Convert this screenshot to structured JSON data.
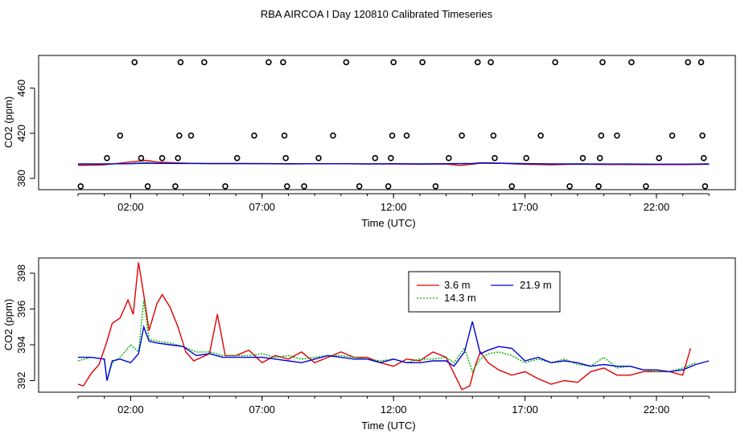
{
  "title": "RBA AIRCOA I  Day 120810  Calibrated Timeseries",
  "colors": {
    "red": "#e00000",
    "green": "#00b000",
    "blue": "#0000dd",
    "axis": "#000000"
  },
  "chart_data": [
    {
      "type": "scatter+line",
      "xlabel": "Time (UTC)",
      "ylabel": "CO2 (ppm)",
      "xlim": [
        -1.5,
        25
      ],
      "ylim": [
        370,
        489
      ],
      "xticks": [
        2,
        7,
        12,
        17,
        22
      ],
      "xtick_labels": [
        "02:00",
        "07:00",
        "12:00",
        "17:00",
        "22:00"
      ],
      "yticks": [
        380,
        420,
        460
      ],
      "ytick_labels": [
        "380",
        "420",
        "460"
      ],
      "calibration_points": {
        "name": "calibration",
        "x": [
          0.1,
          1.1,
          1.6,
          2.15,
          2.4,
          2.65,
          3.2,
          3.7,
          3.8,
          3.85,
          3.9,
          4.3,
          4.8,
          5.6,
          6.05,
          6.7,
          7.25,
          7.8,
          7.85,
          7.9,
          7.95,
          8.6,
          9.15,
          9.7,
          10.2,
          10.7,
          11.3,
          11.8,
          11.9,
          11.95,
          12.0,
          12.5,
          13.1,
          13.6,
          14.1,
          14.6,
          15.2,
          15.7,
          15.8,
          15.85,
          16.5,
          17.05,
          17.6,
          18.15,
          18.7,
          19.2,
          19.8,
          19.85,
          19.9,
          19.95,
          20.5,
          21.05,
          21.6,
          22.1,
          22.6,
          23.2,
          23.7,
          23.75,
          23.8,
          23.85
        ],
        "y": [
          373,
          398,
          418,
          483,
          398,
          373,
          398,
          373,
          398,
          418,
          483,
          418,
          483,
          373,
          398,
          418,
          483,
          483,
          418,
          398,
          373,
          373,
          398,
          418,
          483,
          373,
          398,
          373,
          398,
          418,
          483,
          418,
          483,
          373,
          398,
          418,
          483,
          483,
          418,
          398,
          373,
          398,
          418,
          483,
          373,
          398,
          373,
          398,
          418,
          483,
          418,
          483,
          373,
          398,
          418,
          483,
          483,
          418,
          398,
          373
        ]
      },
      "series": [
        {
          "name": "3.6 m",
          "color": "#e00000",
          "x": [
            0,
            1,
            2,
            2.6,
            3,
            4,
            5,
            6,
            7,
            8,
            9,
            10,
            11,
            12,
            13,
            14,
            14.5,
            15,
            15.3,
            16,
            17,
            18,
            19,
            20,
            21,
            22,
            23,
            24
          ],
          "y": [
            391.5,
            392,
            394.5,
            396,
            394.5,
            393.5,
            393,
            393,
            393,
            392.8,
            393,
            393,
            392.7,
            392.8,
            392.6,
            392.8,
            391.5,
            392.6,
            393.5,
            393.4,
            392.5,
            392,
            392.6,
            392.3,
            392.2,
            392.2,
            392.2,
            392.5
          ]
        },
        {
          "name": "14.3 m",
          "color": "#00b000",
          "x": [
            0,
            1,
            2,
            2.6,
            3,
            4,
            5,
            6,
            7,
            8,
            9,
            10,
            11,
            12,
            13,
            14,
            15,
            15.3,
            16,
            17,
            18,
            19,
            20,
            21,
            22,
            23,
            24
          ],
          "y": [
            392.5,
            392.8,
            393.2,
            394.2,
            393.5,
            393.3,
            393.2,
            393.2,
            393.1,
            393,
            393,
            393,
            392.9,
            393,
            392.9,
            393,
            393.2,
            393.6,
            393.4,
            393,
            392.7,
            392.8,
            392.6,
            392.6,
            392.6,
            392.6,
            392.7
          ]
        },
        {
          "name": "21.9 m",
          "color": "#0000dd",
          "x": [
            0,
            1,
            2,
            2.6,
            3,
            4,
            5,
            6,
            7,
            8,
            9,
            10,
            11,
            12,
            13,
            14,
            15,
            15.3,
            16,
            17,
            18,
            19,
            20,
            21,
            22,
            23,
            24
          ],
          "y": [
            392.8,
            392.9,
            393,
            393.5,
            393.3,
            393.2,
            393.2,
            393.2,
            393.1,
            393,
            393,
            393,
            392.9,
            393,
            392.9,
            393,
            393.2,
            393.8,
            393.5,
            393.1,
            392.9,
            392.8,
            392.7,
            392.7,
            392.6,
            392.6,
            392.8
          ]
        }
      ]
    },
    {
      "type": "line",
      "xlabel": "Time (UTC)",
      "ylabel": "CO2 (ppm)",
      "xlim": [
        -1.5,
        25
      ],
      "ylim": [
        391.35,
        398.85
      ],
      "xticks": [
        2,
        7,
        12,
        17,
        22
      ],
      "xtick_labels": [
        "02:00",
        "07:00",
        "12:00",
        "17:00",
        "22:00"
      ],
      "yticks": [
        392,
        394,
        396,
        398
      ],
      "ytick_labels": [
        "392",
        "394",
        "396",
        "398"
      ],
      "legend": {
        "position": "top-center",
        "entries": [
          "3.6 m",
          "21.9 m",
          "14.3 m"
        ]
      },
      "series": [
        {
          "name": "3.6 m",
          "color": "#e00000",
          "x": [
            0,
            0.2,
            0.5,
            0.8,
            1.1,
            1.3,
            1.6,
            1.9,
            2.1,
            2.3,
            2.5,
            2.7,
            3.0,
            3.2,
            3.5,
            3.8,
            4.1,
            4.4,
            4.7,
            5.0,
            5.3,
            5.6,
            6.0,
            6.5,
            7.0,
            7.5,
            8.0,
            8.5,
            9.0,
            9.5,
            10.0,
            10.5,
            11.0,
            11.5,
            12.0,
            12.5,
            13.0,
            13.5,
            14.0,
            14.3,
            14.6,
            14.9,
            15.1,
            15.3,
            15.6,
            16.0,
            16.5,
            17.0,
            17.5,
            18.0,
            18.5,
            19.0,
            19.5,
            20.0,
            20.5,
            21.0,
            21.5,
            22.0,
            22.5,
            23.0,
            23.3
          ],
          "y": [
            391.8,
            391.7,
            392.4,
            392.9,
            394.2,
            395.2,
            395.5,
            396.5,
            395.7,
            398.6,
            396.8,
            394.8,
            396.3,
            396.8,
            396.1,
            395.0,
            393.6,
            393.1,
            393.3,
            393.5,
            395.7,
            393.4,
            393.4,
            393.7,
            393.0,
            393.4,
            393.2,
            393.6,
            393.0,
            393.3,
            393.6,
            393.3,
            393.3,
            393.0,
            392.8,
            393.2,
            393.1,
            393.6,
            393.3,
            392.4,
            391.5,
            391.7,
            392.8,
            393.6,
            393.0,
            392.6,
            392.3,
            392.5,
            392.1,
            391.8,
            392.0,
            391.9,
            392.5,
            392.7,
            392.3,
            392.3,
            392.5,
            392.5,
            392.5,
            392.3,
            393.8
          ]
        },
        {
          "name": "14.3 m",
          "color": "#00b000",
          "x": [
            0,
            0.5,
            1.0,
            1.1,
            1.3,
            1.6,
            2.0,
            2.3,
            2.5,
            2.7,
            3.0,
            3.5,
            4.0,
            4.5,
            5.0,
            5.5,
            6.0,
            6.5,
            7.0,
            7.5,
            8.0,
            8.5,
            9.0,
            9.5,
            10.0,
            10.5,
            11.0,
            11.5,
            12.0,
            12.5,
            13.0,
            13.5,
            14.0,
            14.3,
            14.7,
            15.0,
            15.3,
            15.6,
            16.0,
            16.5,
            17.0,
            17.5,
            18.0,
            18.5,
            19.0,
            19.5,
            20.0,
            20.5,
            21.0,
            21.5,
            22.0,
            22.5,
            23.0,
            23.5
          ],
          "y": [
            393.1,
            393.3,
            393.2,
            392.0,
            393.0,
            393.3,
            394.0,
            393.6,
            396.5,
            394.3,
            394.2,
            394.1,
            393.9,
            393.6,
            393.6,
            393.4,
            393.4,
            393.4,
            393.5,
            393.3,
            393.4,
            393.2,
            393.3,
            393.4,
            393.4,
            393.3,
            393.2,
            393.1,
            393.2,
            393.0,
            393.2,
            393.2,
            393.3,
            393.0,
            393.8,
            392.5,
            393.2,
            393.5,
            393.6,
            393.4,
            393.0,
            393.2,
            393.0,
            393.2,
            392.9,
            392.8,
            393.3,
            392.7,
            392.8,
            392.6,
            392.5,
            392.5,
            392.7,
            393.0
          ]
        },
        {
          "name": "21.9 m",
          "color": "#0000dd",
          "x": [
            0,
            0.5,
            1.0,
            1.1,
            1.3,
            1.6,
            2.0,
            2.3,
            2.5,
            2.7,
            3.0,
            3.5,
            4.0,
            4.5,
            5.0,
            5.5,
            6.0,
            6.5,
            7.0,
            7.5,
            8.0,
            8.5,
            9.0,
            9.5,
            10.0,
            10.5,
            11.0,
            11.5,
            12.0,
            12.5,
            13.0,
            13.5,
            14.0,
            14.3,
            14.7,
            15.0,
            15.3,
            15.6,
            16.0,
            16.5,
            17.0,
            17.5,
            18.0,
            18.5,
            19.0,
            19.5,
            20.0,
            20.5,
            21.0,
            21.5,
            22.0,
            22.5,
            23.0,
            23.5,
            24.0
          ],
          "y": [
            393.3,
            393.3,
            393.2,
            392.0,
            393.1,
            393.2,
            393.0,
            393.5,
            395.0,
            394.2,
            394.1,
            394.0,
            393.9,
            393.4,
            393.5,
            393.3,
            393.3,
            393.3,
            393.3,
            393.2,
            393.1,
            393.0,
            393.2,
            393.4,
            393.3,
            393.2,
            393.2,
            393.0,
            393.2,
            393.0,
            393.0,
            393.1,
            393.1,
            392.8,
            393.6,
            395.3,
            393.5,
            393.7,
            393.9,
            393.8,
            393.1,
            393.3,
            393.0,
            393.1,
            393.0,
            392.8,
            392.9,
            392.8,
            392.8,
            392.6,
            392.6,
            392.5,
            392.6,
            392.9,
            393.1
          ]
        }
      ]
    }
  ]
}
